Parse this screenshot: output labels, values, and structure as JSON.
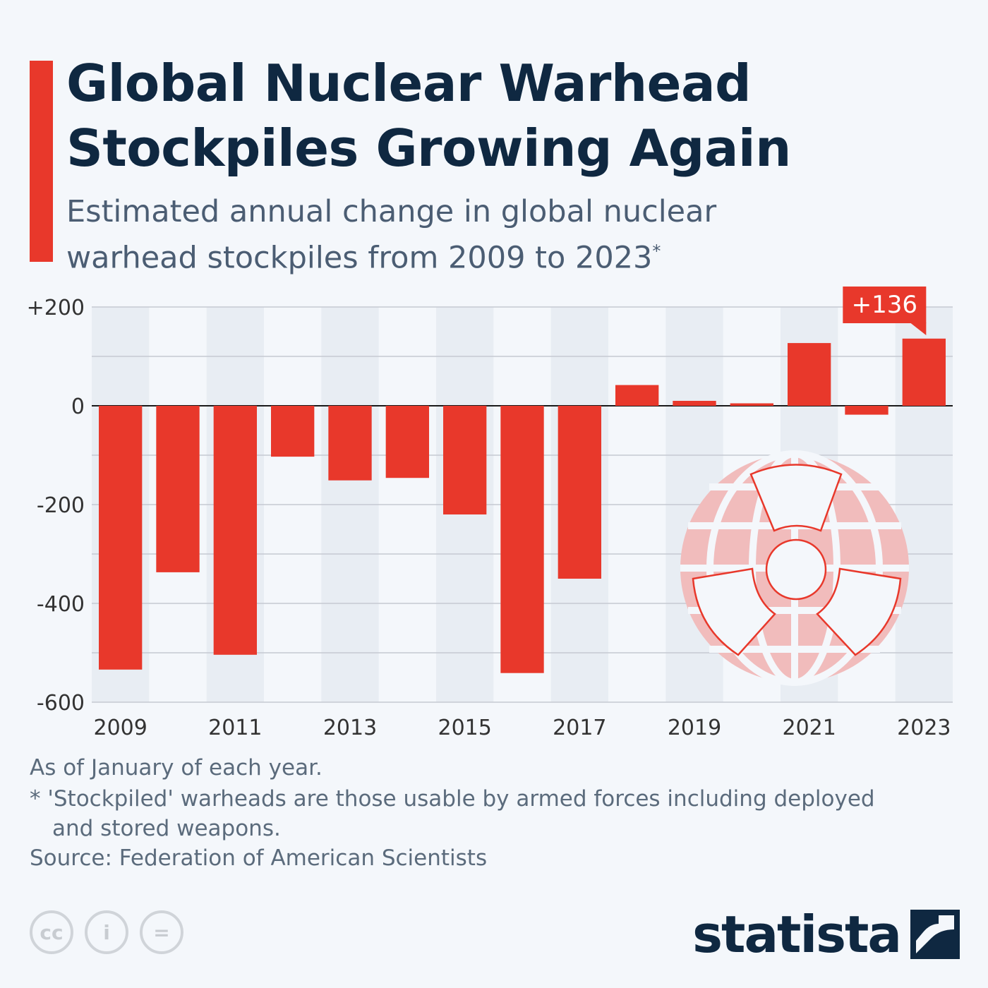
{
  "header": {
    "title_line1": "Global Nuclear Warhead",
    "title_line2": "Stockpiles Growing Again",
    "subtitle": "Estimated annual change in global nuclear warhead stockpiles from 2009 to 2023",
    "subtitle_mark": "*"
  },
  "chart_data": {
    "type": "bar",
    "categories": [
      "2009",
      "2010",
      "2011",
      "2012",
      "2013",
      "2014",
      "2015",
      "2016",
      "2017",
      "2018",
      "2019",
      "2020",
      "2021",
      "2022",
      "2023"
    ],
    "values": [
      -534,
      -337,
      -504,
      -103,
      -151,
      -146,
      -220,
      -541,
      -350,
      42,
      10,
      5,
      127,
      -18,
      136
    ],
    "ylim": [
      -600,
      200
    ],
    "yticks": [
      200,
      0,
      -200,
      -400,
      -600
    ],
    "ytick_labels": [
      "+200",
      "0",
      "-200",
      "-400",
      "-600"
    ],
    "xtick_labels": [
      "2009",
      "2011",
      "2013",
      "2015",
      "2017",
      "2019",
      "2021",
      "2023"
    ],
    "annotation": {
      "category": "2023",
      "text": "+136"
    },
    "grid": true,
    "bar_color": "#e8382b"
  },
  "footer": {
    "note1": "As of January of each year.",
    "note2_line1": "* 'Stockpiled' warheads are those usable by armed forces including deployed",
    "note2_line2": "and stored weapons.",
    "source": "Source: Federation of American Scientists",
    "brand": "statista",
    "license_icons": [
      "cc",
      "by",
      "nd"
    ]
  }
}
